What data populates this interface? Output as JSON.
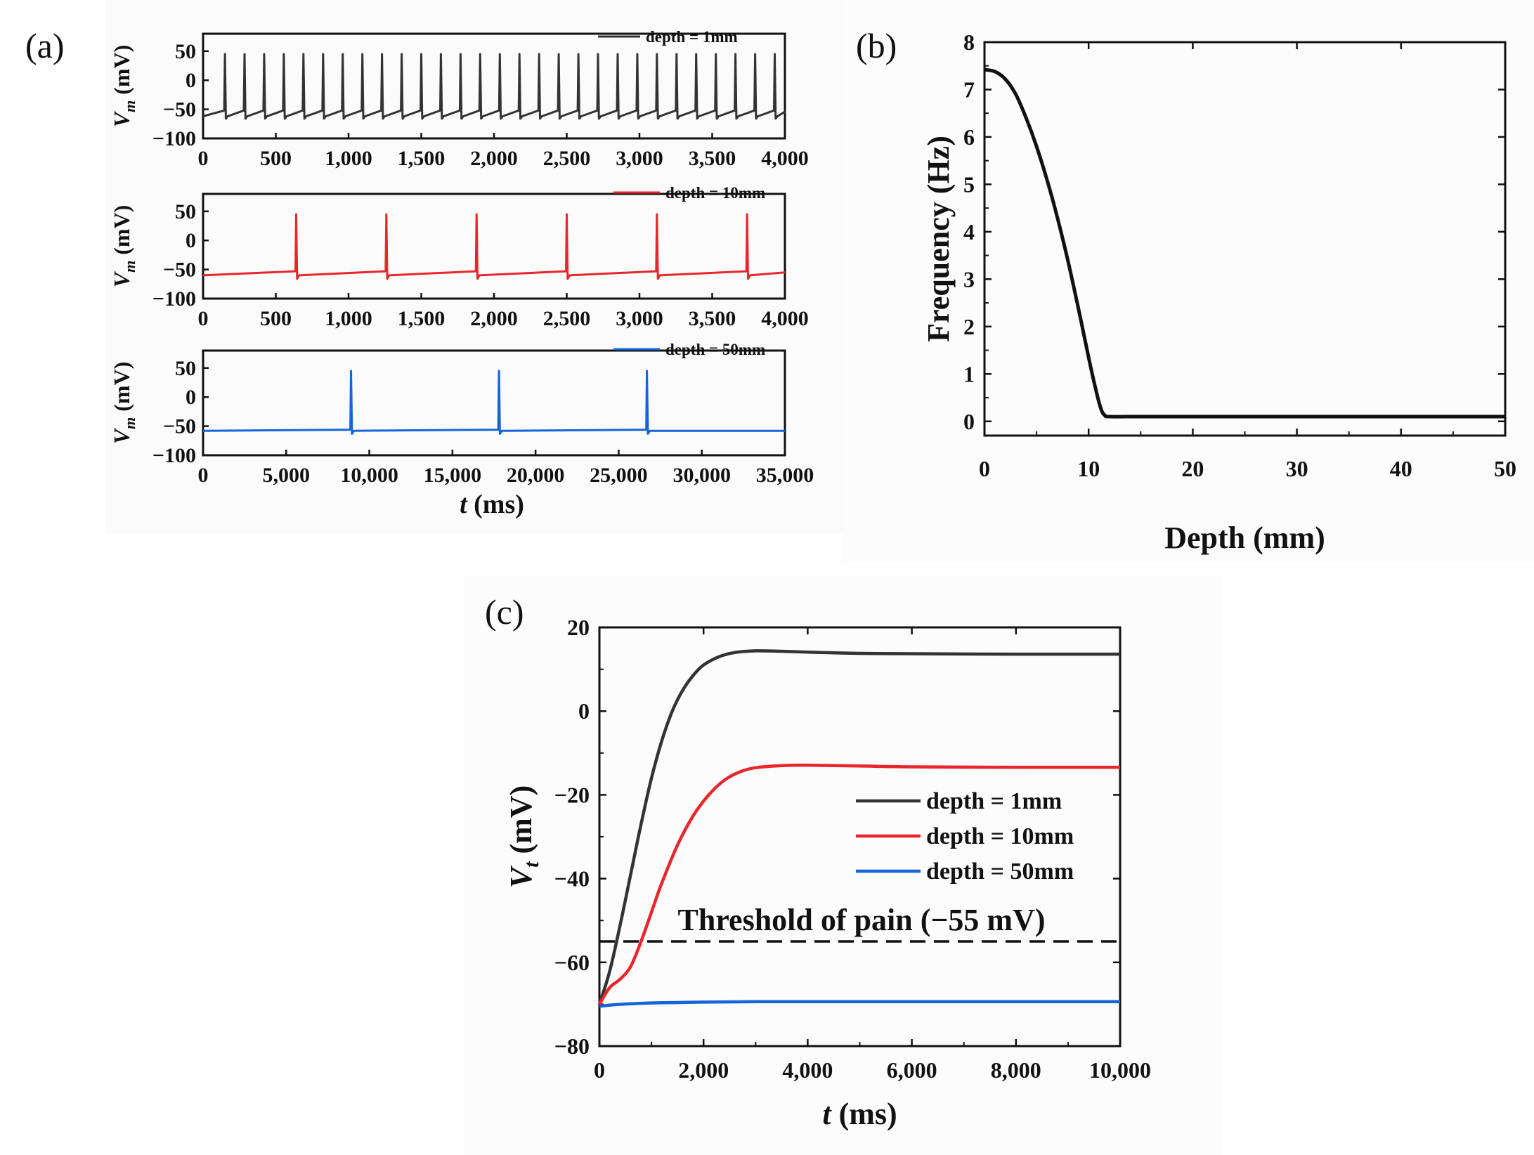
{
  "panels": {
    "a": "(a)",
    "b": "(b)",
    "c": "(c)"
  },
  "colors": {
    "black": "#333333",
    "red": "#e8262b",
    "blue": "#1565d8",
    "axis": "#111111"
  },
  "chart_data": [
    {
      "type": "line",
      "panel": "a",
      "subplots": [
        {
          "legend": "depth = 1mm",
          "color": "#333333",
          "xlim": [
            0,
            4000
          ],
          "ylim": [
            -100,
            80
          ],
          "xticks": [
            0,
            500,
            1000,
            1500,
            2000,
            2500,
            3000,
            3500,
            4000
          ],
          "xtick_labels": [
            "0",
            "500",
            "1,000",
            "1,500",
            "2,000",
            "2,500",
            "3,000",
            "3,500",
            "4,000"
          ],
          "yticks": [
            50,
            0,
            -50,
            -100
          ],
          "ytick_labels": [
            "50",
            "0",
            "−50",
            "−100"
          ],
          "ylabel_main": "V",
          "ylabel_sub": "m",
          "ylabel_unit": " (mV)",
          "spike_times": [
            150,
            285,
            420,
            555,
            690,
            825,
            960,
            1095,
            1230,
            1365,
            1500,
            1635,
            1770,
            1905,
            2040,
            2175,
            2310,
            2445,
            2580,
            2715,
            2850,
            2985,
            3120,
            3255,
            3390,
            3525,
            3660,
            3795,
            3930
          ],
          "rest": -62,
          "pre_spike": -52,
          "peak": 45,
          "trough": -66
        },
        {
          "legend": "depth = 10mm",
          "color": "#e8262b",
          "xlim": [
            0,
            4000
          ],
          "ylim": [
            -100,
            80
          ],
          "xticks": [
            0,
            500,
            1000,
            1500,
            2000,
            2500,
            3000,
            3500,
            4000
          ],
          "xtick_labels": [
            "0",
            "500",
            "1,000",
            "1,500",
            "2,000",
            "2,500",
            "3,000",
            "3,500",
            "4,000"
          ],
          "yticks": [
            50,
            0,
            -50,
            -100
          ],
          "ytick_labels": [
            "50",
            "0",
            "−50",
            "−100"
          ],
          "ylabel_main": "V",
          "ylabel_sub": "m",
          "ylabel_unit": " (mV)",
          "spike_times": [
            640,
            1260,
            1880,
            2500,
            3120,
            3740
          ],
          "rest": -60,
          "pre_spike": -53,
          "peak": 45,
          "trough": -66
        },
        {
          "legend": "depth = 50mm",
          "color": "#1565d8",
          "xlim": [
            0,
            35000
          ],
          "ylim": [
            -100,
            80
          ],
          "xticks": [
            0,
            5000,
            10000,
            15000,
            20000,
            25000,
            30000,
            35000
          ],
          "xtick_labels": [
            "0",
            "5,000",
            "10,000",
            "15,000",
            "20,000",
            "25,000",
            "30,000",
            "35,000"
          ],
          "yticks": [
            50,
            0,
            -50,
            -100
          ],
          "ytick_labels": [
            "50",
            "0",
            "−50",
            "−100"
          ],
          "ylabel_main": "V",
          "ylabel_sub": "m",
          "ylabel_unit": " (mV)",
          "spike_times": [
            8900,
            17800,
            26700
          ],
          "rest": -58,
          "pre_spike": -56,
          "peak": 45,
          "trough": -63
        }
      ],
      "xlabel_main": "t",
      "xlabel_unit": " (ms)"
    },
    {
      "type": "line",
      "panel": "b",
      "xlabel": "Depth (mm)",
      "ylabel": "Frequency (Hz)",
      "xlim": [
        0,
        50
      ],
      "ylim": [
        -0.3,
        8
      ],
      "xticks": [
        0,
        10,
        20,
        30,
        40,
        50
      ],
      "xtick_labels": [
        "0",
        "10",
        "20",
        "30",
        "40",
        "50"
      ],
      "yticks": [
        0,
        1,
        2,
        3,
        4,
        5,
        6,
        7,
        8
      ],
      "ytick_labels": [
        "0",
        "1",
        "2",
        "3",
        "4",
        "5",
        "6",
        "7",
        "8"
      ],
      "series": [
        {
          "name": "Frequency",
          "color": "#111111",
          "x": [
            0,
            1,
            2,
            3,
            4,
            5,
            6,
            7,
            8,
            9,
            10,
            10.5,
            11,
            11.3,
            11.6,
            12,
            15,
            20,
            30,
            40,
            50
          ],
          "y": [
            7.42,
            7.38,
            7.22,
            6.9,
            6.4,
            5.8,
            5.1,
            4.3,
            3.4,
            2.4,
            1.35,
            0.85,
            0.4,
            0.2,
            0.12,
            0.1,
            0.1,
            0.1,
            0.1,
            0.1,
            0.1
          ]
        }
      ]
    },
    {
      "type": "line",
      "panel": "c",
      "xlabel_main": "t",
      "xlabel_unit": " (ms)",
      "ylabel_main": "V",
      "ylabel_sub": "t",
      "ylabel_unit": " (mV)",
      "xlim": [
        0,
        10000
      ],
      "ylim": [
        -80,
        20
      ],
      "xticks": [
        0,
        2000,
        4000,
        6000,
        8000,
        10000
      ],
      "xtick_labels": [
        "0",
        "2,000",
        "4,000",
        "6,000",
        "8,000",
        "10,000"
      ],
      "yticks": [
        20,
        0,
        -20,
        -40,
        -60,
        -80
      ],
      "ytick_labels": [
        "20",
        "0",
        "−20",
        "−40",
        "−60",
        "−80"
      ],
      "threshold": -55,
      "annotation": "Threshold of pain (−55 mV)",
      "series": [
        {
          "name": "depth = 1mm",
          "color": "#333333",
          "x": [
            0,
            200,
            400,
            600,
            800,
            1000,
            1200,
            1400,
            1600,
            1800,
            2000,
            2300,
            2600,
            3000,
            3500,
            4000,
            5000,
            6000,
            8000,
            10000
          ],
          "y": [
            -70,
            -62,
            -51,
            -39,
            -27,
            -16,
            -7,
            0,
            5,
            8.5,
            11,
            13,
            14,
            14.4,
            14.3,
            14.1,
            13.8,
            13.7,
            13.6,
            13.6
          ]
        },
        {
          "name": "depth = 10mm",
          "color": "#e8262b",
          "x": [
            0,
            200,
            400,
            600,
            800,
            1000,
            1200,
            1500,
            1800,
            2100,
            2400,
            2700,
            3000,
            3500,
            4000,
            5000,
            6000,
            8000,
            10000
          ],
          "y": [
            -70,
            -66,
            -64,
            -61,
            -55,
            -48,
            -41,
            -32,
            -25,
            -20,
            -16.5,
            -14.5,
            -13.5,
            -13,
            -12.9,
            -13.1,
            -13.3,
            -13.4,
            -13.4
          ]
        },
        {
          "name": "depth = 50mm",
          "color": "#1565d8",
          "x": [
            0,
            300,
            600,
            1000,
            1500,
            2000,
            3000,
            4000,
            6000,
            8000,
            10000
          ],
          "y": [
            -70.5,
            -70.1,
            -69.9,
            -69.7,
            -69.6,
            -69.5,
            -69.4,
            -69.4,
            -69.4,
            -69.4,
            -69.4
          ]
        }
      ]
    }
  ]
}
